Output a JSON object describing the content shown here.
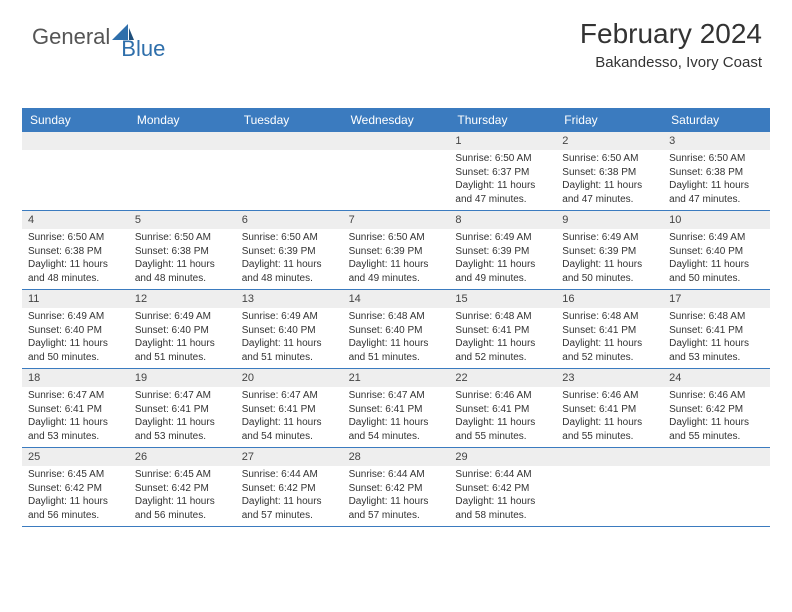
{
  "logo": {
    "word1": "General",
    "word2": "Blue"
  },
  "header": {
    "title": "February 2024",
    "location": "Bakandesso, Ivory Coast"
  },
  "colors": {
    "header_bg": "#3b7bbf",
    "header_fg": "#ffffff",
    "daynum_bg": "#eeeeee",
    "rule": "#3b7bbf",
    "text": "#333333"
  },
  "calendar": {
    "weekdays": [
      "Sunday",
      "Monday",
      "Tuesday",
      "Wednesday",
      "Thursday",
      "Friday",
      "Saturday"
    ],
    "weeks": [
      [
        {
          "day": "",
          "sunrise": "",
          "sunset": "",
          "daylight1": "",
          "daylight2": ""
        },
        {
          "day": "",
          "sunrise": "",
          "sunset": "",
          "daylight1": "",
          "daylight2": ""
        },
        {
          "day": "",
          "sunrise": "",
          "sunset": "",
          "daylight1": "",
          "daylight2": ""
        },
        {
          "day": "",
          "sunrise": "",
          "sunset": "",
          "daylight1": "",
          "daylight2": ""
        },
        {
          "day": "1",
          "sunrise": "Sunrise: 6:50 AM",
          "sunset": "Sunset: 6:37 PM",
          "daylight1": "Daylight: 11 hours",
          "daylight2": "and 47 minutes."
        },
        {
          "day": "2",
          "sunrise": "Sunrise: 6:50 AM",
          "sunset": "Sunset: 6:38 PM",
          "daylight1": "Daylight: 11 hours",
          "daylight2": "and 47 minutes."
        },
        {
          "day": "3",
          "sunrise": "Sunrise: 6:50 AM",
          "sunset": "Sunset: 6:38 PM",
          "daylight1": "Daylight: 11 hours",
          "daylight2": "and 47 minutes."
        }
      ],
      [
        {
          "day": "4",
          "sunrise": "Sunrise: 6:50 AM",
          "sunset": "Sunset: 6:38 PM",
          "daylight1": "Daylight: 11 hours",
          "daylight2": "and 48 minutes."
        },
        {
          "day": "5",
          "sunrise": "Sunrise: 6:50 AM",
          "sunset": "Sunset: 6:38 PM",
          "daylight1": "Daylight: 11 hours",
          "daylight2": "and 48 minutes."
        },
        {
          "day": "6",
          "sunrise": "Sunrise: 6:50 AM",
          "sunset": "Sunset: 6:39 PM",
          "daylight1": "Daylight: 11 hours",
          "daylight2": "and 48 minutes."
        },
        {
          "day": "7",
          "sunrise": "Sunrise: 6:50 AM",
          "sunset": "Sunset: 6:39 PM",
          "daylight1": "Daylight: 11 hours",
          "daylight2": "and 49 minutes."
        },
        {
          "day": "8",
          "sunrise": "Sunrise: 6:49 AM",
          "sunset": "Sunset: 6:39 PM",
          "daylight1": "Daylight: 11 hours",
          "daylight2": "and 49 minutes."
        },
        {
          "day": "9",
          "sunrise": "Sunrise: 6:49 AM",
          "sunset": "Sunset: 6:39 PM",
          "daylight1": "Daylight: 11 hours",
          "daylight2": "and 50 minutes."
        },
        {
          "day": "10",
          "sunrise": "Sunrise: 6:49 AM",
          "sunset": "Sunset: 6:40 PM",
          "daylight1": "Daylight: 11 hours",
          "daylight2": "and 50 minutes."
        }
      ],
      [
        {
          "day": "11",
          "sunrise": "Sunrise: 6:49 AM",
          "sunset": "Sunset: 6:40 PM",
          "daylight1": "Daylight: 11 hours",
          "daylight2": "and 50 minutes."
        },
        {
          "day": "12",
          "sunrise": "Sunrise: 6:49 AM",
          "sunset": "Sunset: 6:40 PM",
          "daylight1": "Daylight: 11 hours",
          "daylight2": "and 51 minutes."
        },
        {
          "day": "13",
          "sunrise": "Sunrise: 6:49 AM",
          "sunset": "Sunset: 6:40 PM",
          "daylight1": "Daylight: 11 hours",
          "daylight2": "and 51 minutes."
        },
        {
          "day": "14",
          "sunrise": "Sunrise: 6:48 AM",
          "sunset": "Sunset: 6:40 PM",
          "daylight1": "Daylight: 11 hours",
          "daylight2": "and 51 minutes."
        },
        {
          "day": "15",
          "sunrise": "Sunrise: 6:48 AM",
          "sunset": "Sunset: 6:41 PM",
          "daylight1": "Daylight: 11 hours",
          "daylight2": "and 52 minutes."
        },
        {
          "day": "16",
          "sunrise": "Sunrise: 6:48 AM",
          "sunset": "Sunset: 6:41 PM",
          "daylight1": "Daylight: 11 hours",
          "daylight2": "and 52 minutes."
        },
        {
          "day": "17",
          "sunrise": "Sunrise: 6:48 AM",
          "sunset": "Sunset: 6:41 PM",
          "daylight1": "Daylight: 11 hours",
          "daylight2": "and 53 minutes."
        }
      ],
      [
        {
          "day": "18",
          "sunrise": "Sunrise: 6:47 AM",
          "sunset": "Sunset: 6:41 PM",
          "daylight1": "Daylight: 11 hours",
          "daylight2": "and 53 minutes."
        },
        {
          "day": "19",
          "sunrise": "Sunrise: 6:47 AM",
          "sunset": "Sunset: 6:41 PM",
          "daylight1": "Daylight: 11 hours",
          "daylight2": "and 53 minutes."
        },
        {
          "day": "20",
          "sunrise": "Sunrise: 6:47 AM",
          "sunset": "Sunset: 6:41 PM",
          "daylight1": "Daylight: 11 hours",
          "daylight2": "and 54 minutes."
        },
        {
          "day": "21",
          "sunrise": "Sunrise: 6:47 AM",
          "sunset": "Sunset: 6:41 PM",
          "daylight1": "Daylight: 11 hours",
          "daylight2": "and 54 minutes."
        },
        {
          "day": "22",
          "sunrise": "Sunrise: 6:46 AM",
          "sunset": "Sunset: 6:41 PM",
          "daylight1": "Daylight: 11 hours",
          "daylight2": "and 55 minutes."
        },
        {
          "day": "23",
          "sunrise": "Sunrise: 6:46 AM",
          "sunset": "Sunset: 6:41 PM",
          "daylight1": "Daylight: 11 hours",
          "daylight2": "and 55 minutes."
        },
        {
          "day": "24",
          "sunrise": "Sunrise: 6:46 AM",
          "sunset": "Sunset: 6:42 PM",
          "daylight1": "Daylight: 11 hours",
          "daylight2": "and 55 minutes."
        }
      ],
      [
        {
          "day": "25",
          "sunrise": "Sunrise: 6:45 AM",
          "sunset": "Sunset: 6:42 PM",
          "daylight1": "Daylight: 11 hours",
          "daylight2": "and 56 minutes."
        },
        {
          "day": "26",
          "sunrise": "Sunrise: 6:45 AM",
          "sunset": "Sunset: 6:42 PM",
          "daylight1": "Daylight: 11 hours",
          "daylight2": "and 56 minutes."
        },
        {
          "day": "27",
          "sunrise": "Sunrise: 6:44 AM",
          "sunset": "Sunset: 6:42 PM",
          "daylight1": "Daylight: 11 hours",
          "daylight2": "and 57 minutes."
        },
        {
          "day": "28",
          "sunrise": "Sunrise: 6:44 AM",
          "sunset": "Sunset: 6:42 PM",
          "daylight1": "Daylight: 11 hours",
          "daylight2": "and 57 minutes."
        },
        {
          "day": "29",
          "sunrise": "Sunrise: 6:44 AM",
          "sunset": "Sunset: 6:42 PM",
          "daylight1": "Daylight: 11 hours",
          "daylight2": "and 58 minutes."
        },
        {
          "day": "",
          "sunrise": "",
          "sunset": "",
          "daylight1": "",
          "daylight2": ""
        },
        {
          "day": "",
          "sunrise": "",
          "sunset": "",
          "daylight1": "",
          "daylight2": ""
        }
      ]
    ]
  }
}
